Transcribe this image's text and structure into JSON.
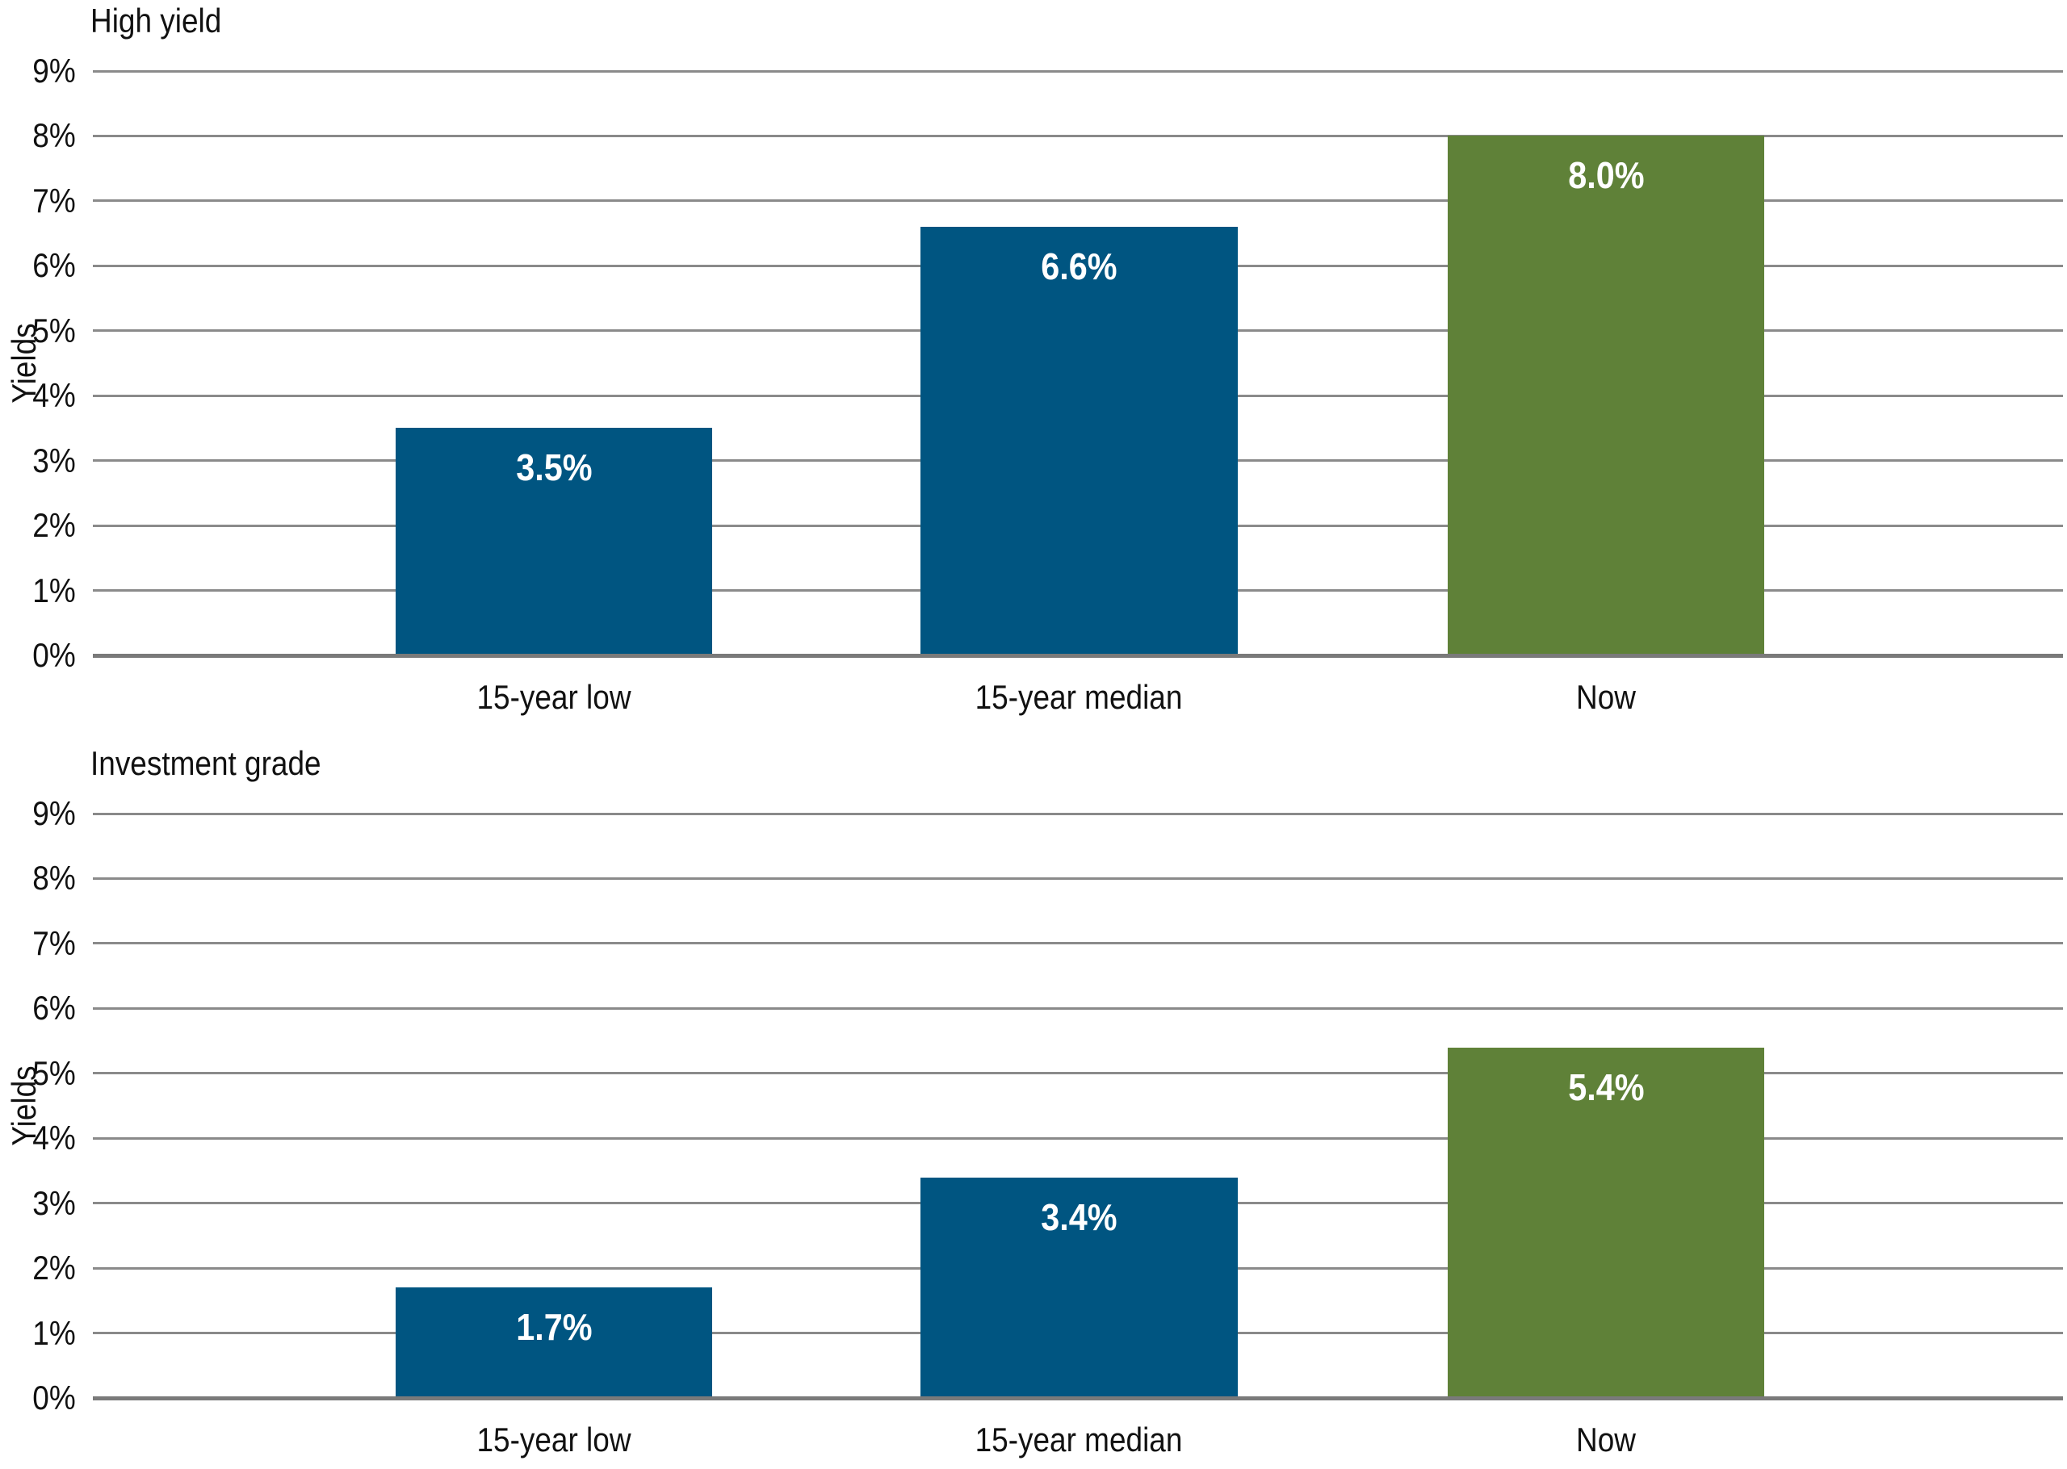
{
  "page": {
    "background": "#ffffff",
    "text_color": "#111111",
    "gridline_color": "#8a8a8a",
    "axisline_color": "#7a7a7a"
  },
  "chart_data": [
    {
      "type": "bar",
      "title": "High yield",
      "xlabel": "",
      "ylabel": "Yields",
      "categories": [
        "15-year low",
        "15-year median",
        "Now"
      ],
      "values": [
        3.5,
        6.6,
        8.0
      ],
      "value_labels": [
        "3.5%",
        "6.6%",
        "8.0%"
      ],
      "bar_colors": [
        "#005581",
        "#005581",
        "#5f8138"
      ],
      "value_label_color": "#ffffff",
      "ylim": [
        0,
        9
      ],
      "ytick_step": 1,
      "ytick_labels": [
        "0%",
        "1%",
        "2%",
        "3%",
        "4%",
        "5%",
        "6%",
        "7%",
        "8%",
        "9%"
      ],
      "grid": true,
      "legend_position": "none"
    },
    {
      "type": "bar",
      "title": "Investment grade",
      "xlabel": "",
      "ylabel": "Yields",
      "categories": [
        "15-year low",
        "15-year median",
        "Now"
      ],
      "values": [
        1.7,
        3.4,
        5.4
      ],
      "value_labels": [
        "1.7%",
        "3.4%",
        "5.4%"
      ],
      "bar_colors": [
        "#005581",
        "#005581",
        "#5f8138"
      ],
      "value_label_color": "#ffffff",
      "ylim": [
        0,
        9
      ],
      "ytick_step": 1,
      "ytick_labels": [
        "0%",
        "1%",
        "2%",
        "3%",
        "4%",
        "5%",
        "6%",
        "7%",
        "8%",
        "9%"
      ],
      "grid": true,
      "legend_position": "none"
    }
  ]
}
